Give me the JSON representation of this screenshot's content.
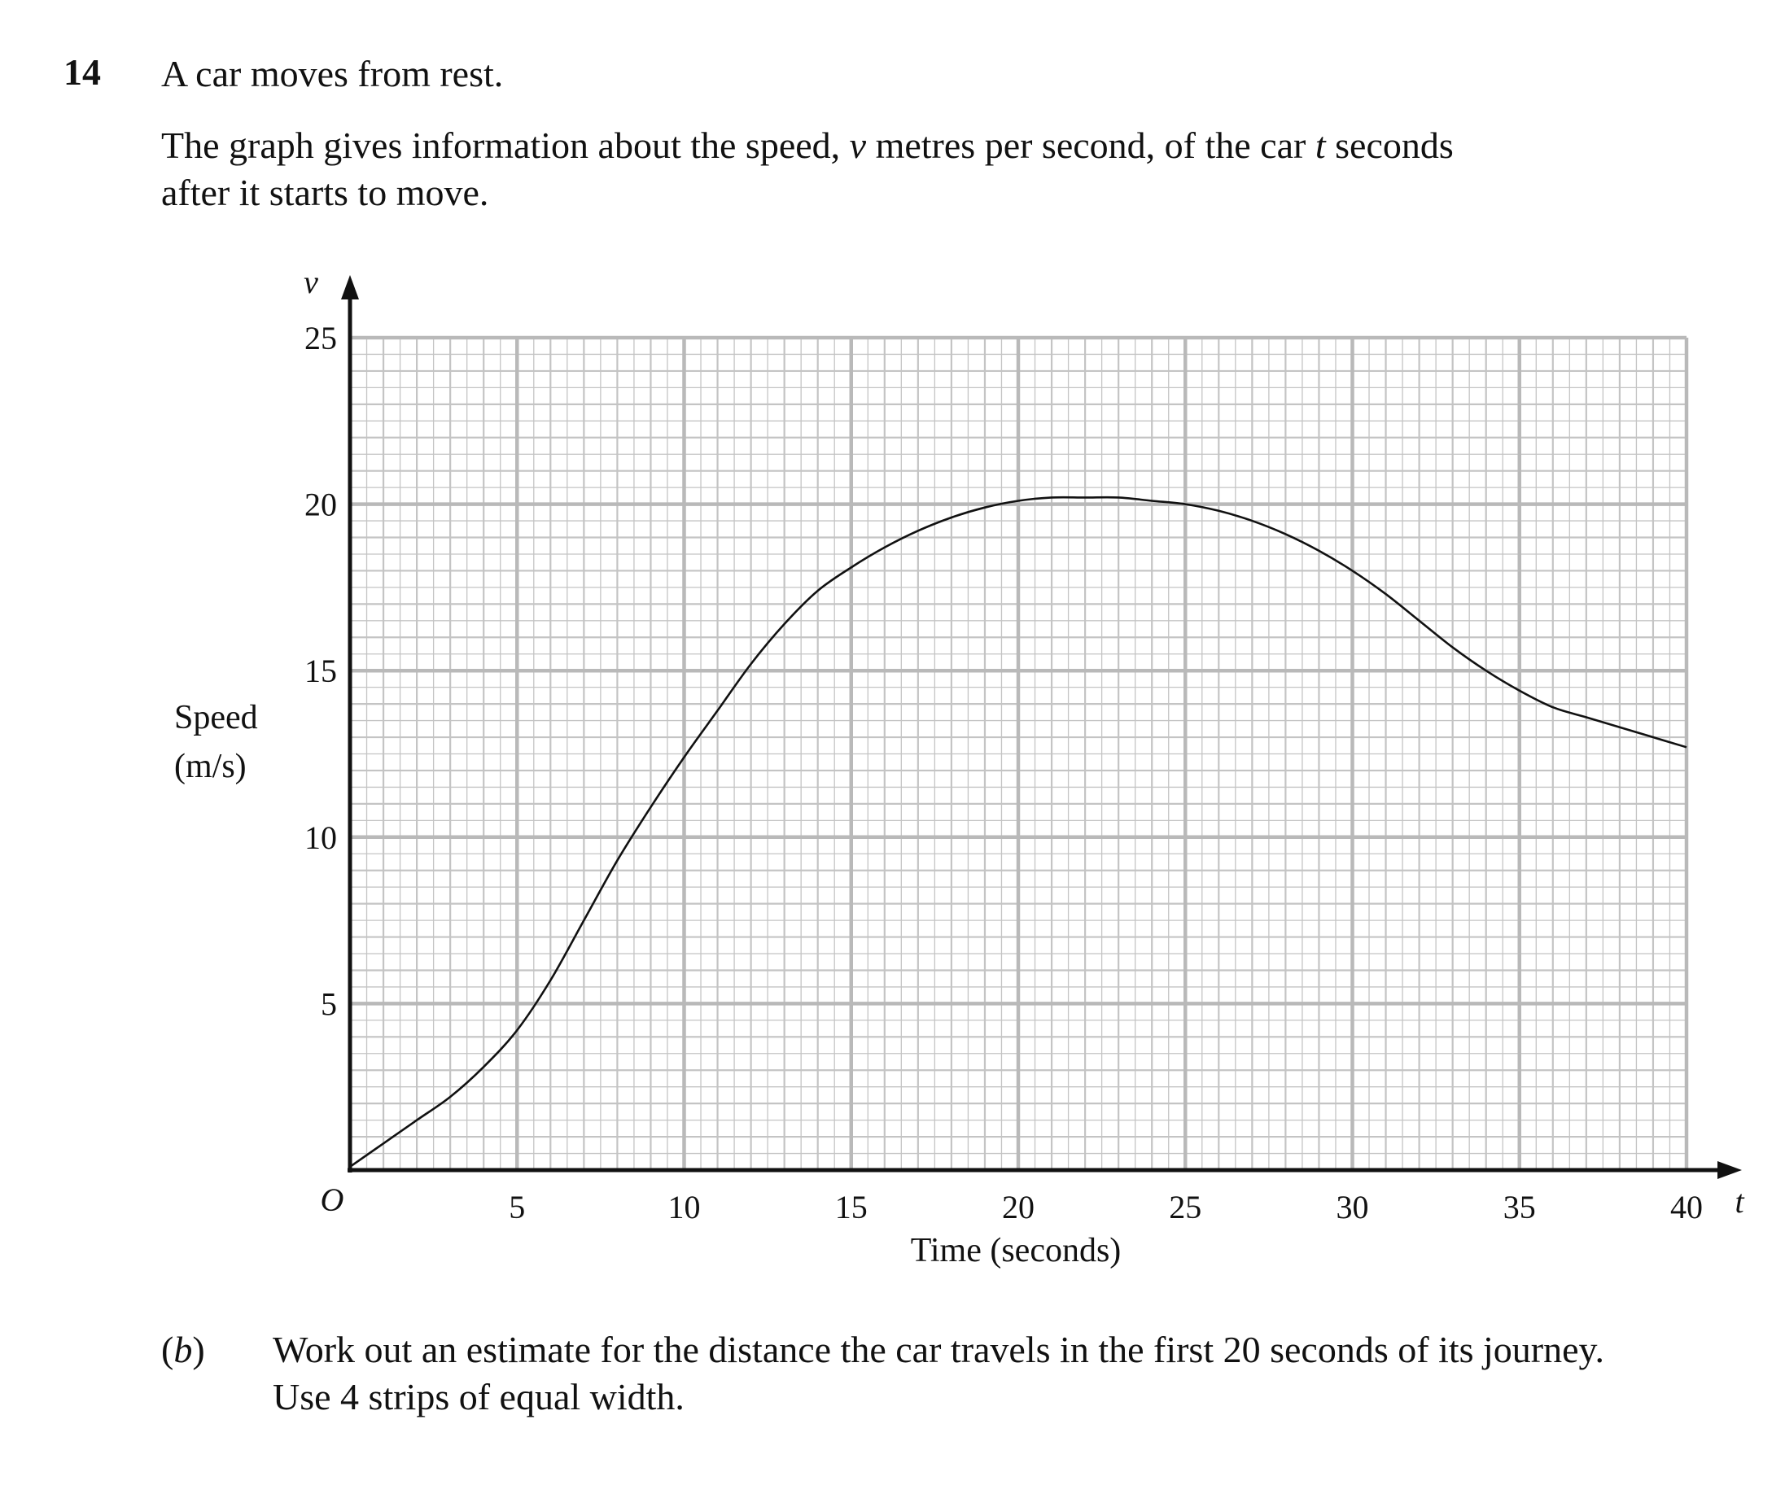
{
  "question": {
    "number": "14",
    "stem": "A car moves from rest.",
    "info": {
      "line1_a": "The graph gives information about the speed, ",
      "line1_v": "v",
      "line1_b": " metres per second, of the car ",
      "line1_t": "t",
      "line1_c": " seconds",
      "line2": "after it starts to move."
    },
    "part_b": {
      "label_open": "(",
      "label_letter": "b",
      "label_close": ")",
      "line1": "Work out an estimate for the distance the car travels in the first 20 seconds of its journey.",
      "line2": "Use 4 strips of equal width."
    }
  },
  "chart_data": {
    "type": "line",
    "title": "",
    "xlabel": "Time (seconds)",
    "ylabel_line1": "Speed",
    "ylabel_line2": "(m/s)",
    "x_axis_symbol": "t",
    "y_axis_symbol": "v",
    "origin_label": "O",
    "xlim": [
      0,
      40
    ],
    "ylim": [
      0,
      25
    ],
    "x_ticks": [
      "5",
      "10",
      "15",
      "20",
      "25",
      "30",
      "35",
      "40"
    ],
    "y_ticks": [
      "5",
      "10",
      "15",
      "20",
      "25"
    ],
    "grid": true,
    "series": [
      {
        "x": [
          0,
          1,
          2,
          3,
          4,
          5,
          6,
          7,
          8,
          9,
          10,
          11,
          12,
          13,
          14,
          15,
          16,
          17,
          18,
          19,
          20,
          21,
          22,
          23,
          24,
          25,
          26,
          27,
          28,
          29,
          30,
          31,
          32,
          33,
          34,
          35,
          36,
          37,
          38,
          39,
          40
        ],
        "y": [
          0.1,
          0.8,
          1.5,
          2.2,
          3.1,
          4.2,
          5.7,
          7.5,
          9.3,
          10.9,
          12.4,
          13.8,
          15.2,
          16.4,
          17.4,
          18.1,
          18.7,
          19.2,
          19.6,
          19.9,
          20.1,
          20.2,
          20.2,
          20.2,
          20.1,
          20.0,
          19.8,
          19.5,
          19.1,
          18.6,
          18.0,
          17.3,
          16.5,
          15.7,
          15.0,
          14.4,
          13.9,
          13.6,
          13.3,
          13.0,
          12.7
        ]
      }
    ]
  }
}
